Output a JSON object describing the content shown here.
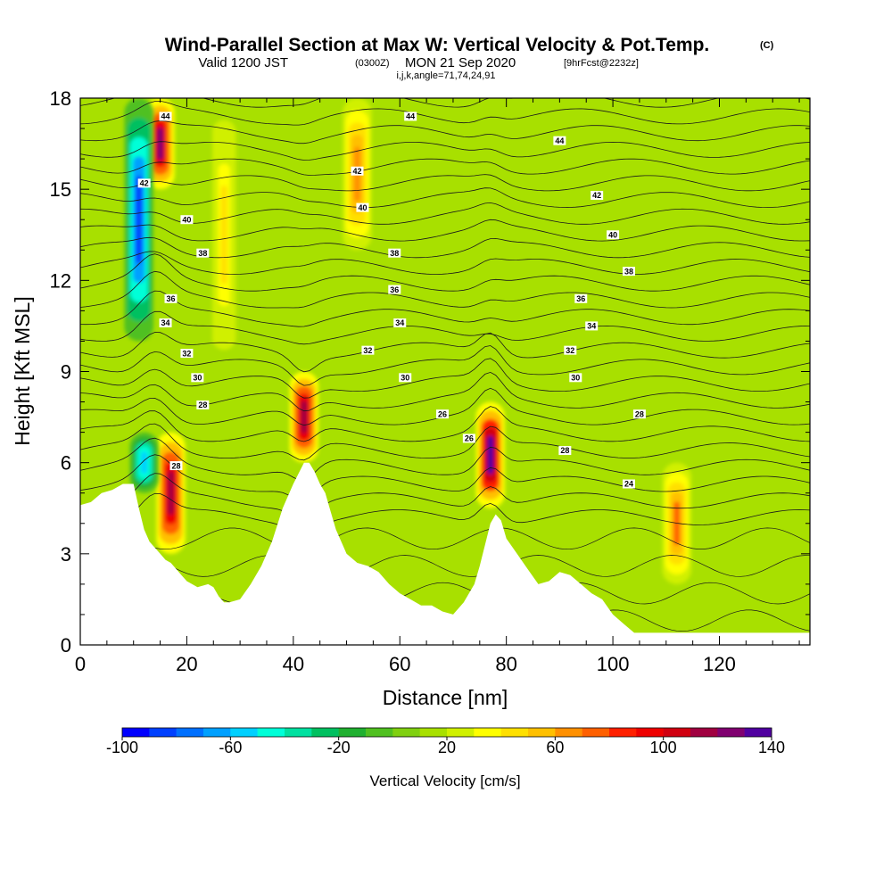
{
  "title": {
    "main": "Wind-Parallel Section at Max W: Vertical Velocity & Pot.Temp.",
    "mark": "(C)",
    "sub_a": "Valid 1200 JST",
    "sub_b": "(0300Z)",
    "sub_c": "MON 21 Sep 2020",
    "sub_d": "[9hrFcst@2232z]",
    "indices": "i,j,k,angle=71,74,24,91"
  },
  "chart_data": {
    "type": "heatmap",
    "xlabel": "Distance [nm]",
    "ylabel": "Height [Kft MSL]",
    "xlim": [
      0,
      137
    ],
    "ylim": [
      0,
      18
    ],
    "x_ticks": [
      0,
      20,
      40,
      60,
      80,
      100,
      120
    ],
    "y_ticks": [
      0,
      3,
      6,
      9,
      12,
      15,
      18
    ],
    "grid": false,
    "background_value_cm_s": 12,
    "colorbar": {
      "title": "Vertical Velocity [cm/s]",
      "placement": "bottom",
      "min": -100,
      "max": 140,
      "step": 10,
      "tick_values": [
        -100,
        -60,
        -20,
        20,
        60,
        100,
        140
      ],
      "colors": [
        "#0000ff",
        "#0040ff",
        "#0070ff",
        "#00a0ff",
        "#00d0ff",
        "#00ffd8",
        "#00e0a0",
        "#00c060",
        "#20b030",
        "#50c020",
        "#80d010",
        "#a8e000",
        "#d0f000",
        "#ffff00",
        "#ffe000",
        "#ffc000",
        "#ff9000",
        "#ff6000",
        "#ff2000",
        "#ee0000",
        "#d00010",
        "#a00040",
        "#800070",
        "#5000a0"
      ]
    },
    "terrain_kft": [
      [
        0,
        4.6
      ],
      [
        2,
        4.7
      ],
      [
        4,
        5.0
      ],
      [
        6,
        5.1
      ],
      [
        8,
        5.3
      ],
      [
        10,
        5.3
      ],
      [
        11,
        4.5
      ],
      [
        12,
        3.8
      ],
      [
        13,
        3.4
      ],
      [
        14,
        3.2
      ],
      [
        15,
        3.0
      ],
      [
        16,
        2.8
      ],
      [
        17,
        2.7
      ],
      [
        18,
        2.5
      ],
      [
        19,
        2.3
      ],
      [
        20,
        2.1
      ],
      [
        21,
        2.0
      ],
      [
        22,
        1.9
      ],
      [
        24,
        2.0
      ],
      [
        25,
        1.9
      ],
      [
        26,
        1.6
      ],
      [
        27,
        1.4
      ],
      [
        28,
        1.4
      ],
      [
        30,
        1.5
      ],
      [
        32,
        2.0
      ],
      [
        34,
        2.6
      ],
      [
        36,
        3.4
      ],
      [
        38,
        4.5
      ],
      [
        40,
        5.3
      ],
      [
        42,
        6.0
      ],
      [
        43,
        6.0
      ],
      [
        44,
        5.7
      ],
      [
        45,
        5.3
      ],
      [
        46,
        5.0
      ],
      [
        47,
        4.4
      ],
      [
        48,
        3.8
      ],
      [
        49,
        3.4
      ],
      [
        50,
        3.0
      ],
      [
        52,
        2.7
      ],
      [
        54,
        2.6
      ],
      [
        56,
        2.4
      ],
      [
        58,
        2.0
      ],
      [
        60,
        1.7
      ],
      [
        62,
        1.5
      ],
      [
        64,
        1.3
      ],
      [
        66,
        1.3
      ],
      [
        68,
        1.1
      ],
      [
        70,
        1.0
      ],
      [
        72,
        1.4
      ],
      [
        74,
        2.0
      ],
      [
        75,
        2.6
      ],
      [
        76,
        3.3
      ],
      [
        77,
        4.0
      ],
      [
        78,
        4.3
      ],
      [
        79,
        4.1
      ],
      [
        80,
        3.5
      ],
      [
        82,
        3.0
      ],
      [
        84,
        2.5
      ],
      [
        86,
        2.0
      ],
      [
        88,
        2.1
      ],
      [
        90,
        2.4
      ],
      [
        92,
        2.3
      ],
      [
        94,
        2.0
      ],
      [
        96,
        1.7
      ],
      [
        98,
        1.5
      ],
      [
        100,
        1.0
      ],
      [
        102,
        0.7
      ],
      [
        104,
        0.4
      ],
      [
        137,
        0.4
      ]
    ],
    "updraft_bands": [
      {
        "x": 15,
        "w_cm_s": 120,
        "from_kft": 15,
        "to_kft": 18
      },
      {
        "x": 17,
        "w_cm_s": 110,
        "from_kft": 3,
        "to_kft": 7
      },
      {
        "x": 27,
        "w_cm_s": 40,
        "from_kft": 9,
        "to_kft": 18
      },
      {
        "x": 42,
        "w_cm_s": 110,
        "from_kft": 6,
        "to_kft": 9
      },
      {
        "x": 52,
        "w_cm_s": 60,
        "from_kft": 13,
        "to_kft": 18
      },
      {
        "x": 77,
        "w_cm_s": 130,
        "from_kft": 4.5,
        "to_kft": 8
      },
      {
        "x": 112,
        "w_cm_s": 70,
        "from_kft": 2,
        "to_kft": 6
      }
    ],
    "downdraft_bands": [
      {
        "x": 11,
        "w_cm_s": -90,
        "from_kft": 10,
        "to_kft": 18
      },
      {
        "x": 12,
        "w_cm_s": -60,
        "from_kft": 5,
        "to_kft": 7
      }
    ],
    "theta_contours_c": [
      {
        "value": "44",
        "x": 16,
        "y": 17.4
      },
      {
        "value": "44",
        "x": 62,
        "y": 17.4
      },
      {
        "value": "44",
        "x": 90,
        "y": 16.6
      },
      {
        "value": "42",
        "x": 12,
        "y": 15.2
      },
      {
        "value": "42",
        "x": 52,
        "y": 15.6
      },
      {
        "value": "42",
        "x": 97,
        "y": 14.8
      },
      {
        "value": "40",
        "x": 20,
        "y": 14.0
      },
      {
        "value": "40",
        "x": 53,
        "y": 14.4
      },
      {
        "value": "40",
        "x": 100,
        "y": 13.5
      },
      {
        "value": "38",
        "x": 23,
        "y": 12.9
      },
      {
        "value": "38",
        "x": 59,
        "y": 12.9
      },
      {
        "value": "38",
        "x": 103,
        "y": 12.3
      },
      {
        "value": "36",
        "x": 17,
        "y": 11.4
      },
      {
        "value": "36",
        "x": 59,
        "y": 11.7
      },
      {
        "value": "36",
        "x": 94,
        "y": 11.4
      },
      {
        "value": "34",
        "x": 16,
        "y": 10.6
      },
      {
        "value": "34",
        "x": 60,
        "y": 10.6
      },
      {
        "value": "34",
        "x": 96,
        "y": 10.5
      },
      {
        "value": "32",
        "x": 20,
        "y": 9.6
      },
      {
        "value": "32",
        "x": 54,
        "y": 9.7
      },
      {
        "value": "32",
        "x": 92,
        "y": 9.7
      },
      {
        "value": "30",
        "x": 22,
        "y": 8.8
      },
      {
        "value": "30",
        "x": 61,
        "y": 8.8
      },
      {
        "value": "30",
        "x": 93,
        "y": 8.8
      },
      {
        "value": "28",
        "x": 23,
        "y": 7.9
      },
      {
        "value": "28",
        "x": 105,
        "y": 7.6
      },
      {
        "value": "28",
        "x": 91,
        "y": 6.4
      },
      {
        "value": "28",
        "x": 18,
        "y": 5.9
      },
      {
        "value": "26",
        "x": 68,
        "y": 7.6
      },
      {
        "value": "26",
        "x": 73,
        "y": 6.8
      },
      {
        "value": "24",
        "x": 103,
        "y": 5.3
      }
    ]
  }
}
